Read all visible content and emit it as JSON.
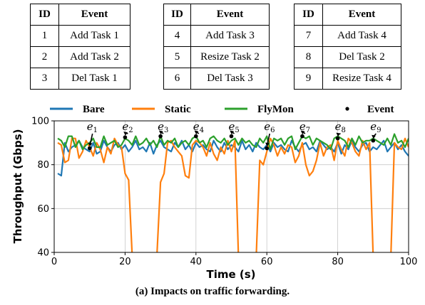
{
  "tables": [
    {
      "header": {
        "id": "ID",
        "event": "Event"
      },
      "rows": [
        {
          "id": "1",
          "event": "Add Task 1"
        },
        {
          "id": "2",
          "event": "Add Task 2"
        },
        {
          "id": "3",
          "event": "Del Task 1"
        }
      ]
    },
    {
      "header": {
        "id": "ID",
        "event": "Event"
      },
      "rows": [
        {
          "id": "4",
          "event": "Add Task 3"
        },
        {
          "id": "5",
          "event": "Resize Task 2"
        },
        {
          "id": "6",
          "event": "Del Task 3"
        }
      ]
    },
    {
      "header": {
        "id": "ID",
        "event": "Event"
      },
      "rows": [
        {
          "id": "7",
          "event": "Add Task 4"
        },
        {
          "id": "8",
          "event": "Del Task 2"
        },
        {
          "id": "9",
          "event": "Resize Task 4"
        }
      ]
    }
  ],
  "caption": "(a) Impacts on traffic forwarding.",
  "chart_data": {
    "type": "line",
    "xlabel": "Time (s)",
    "ylabel": "Throughput (Gbps)",
    "xlim": [
      0,
      100
    ],
    "ylim": [
      40,
      100
    ],
    "xticks": [
      0,
      20,
      40,
      60,
      80,
      100
    ],
    "yticks": [
      40,
      60,
      80,
      100
    ],
    "grid": true,
    "legend_position": "top",
    "x": [
      1,
      2,
      3,
      4,
      5,
      6,
      7,
      8,
      9,
      10,
      11,
      12,
      13,
      14,
      15,
      16,
      17,
      18,
      19,
      20,
      21,
      22,
      23,
      24,
      25,
      26,
      27,
      28,
      29,
      30,
      31,
      32,
      33,
      34,
      35,
      36,
      37,
      38,
      39,
      40,
      41,
      42,
      43,
      44,
      45,
      46,
      47,
      48,
      49,
      50,
      51,
      52,
      53,
      54,
      55,
      56,
      57,
      58,
      59,
      60,
      61,
      62,
      63,
      64,
      65,
      66,
      67,
      68,
      69,
      70,
      71,
      72,
      73,
      74,
      75,
      76,
      77,
      78,
      79,
      80,
      81,
      82,
      83,
      84,
      85,
      86,
      87,
      88,
      89,
      90,
      91,
      92,
      93,
      94,
      95,
      96,
      97,
      98,
      99,
      100
    ],
    "series": [
      {
        "name": "Bare",
        "color": "#1f77b4",
        "values": [
          76,
          75,
          90,
          86,
          88,
          89,
          91,
          88,
          87,
          86,
          90,
          85,
          86,
          91,
          88,
          86,
          89,
          90,
          87,
          89,
          86,
          88,
          91,
          87,
          88,
          86,
          90,
          85,
          89,
          91,
          88,
          87,
          86,
          90,
          88,
          91,
          87,
          89,
          86,
          90,
          88,
          89,
          87,
          86,
          91,
          88,
          86,
          90,
          87,
          89,
          88,
          86,
          91,
          87,
          89,
          86,
          90,
          88,
          87,
          89,
          86,
          90,
          88,
          89,
          87,
          86,
          91,
          88,
          86,
          89,
          90,
          87,
          88,
          86,
          91,
          89,
          87,
          88,
          86,
          90,
          85,
          89,
          87,
          91,
          88,
          86,
          89,
          90,
          86,
          88,
          87,
          89,
          91,
          86,
          88,
          90,
          87,
          89,
          86,
          84
        ]
      },
      {
        "name": "Static",
        "color": "#ff7f0e",
        "values": [
          90,
          89,
          81,
          82,
          92,
          92,
          83,
          86,
          91,
          88,
          84,
          90,
          87,
          81,
          88,
          85,
          92,
          89,
          88,
          76,
          73,
          39,
          38,
          38,
          38,
          38,
          38,
          38,
          39,
          72,
          76,
          90,
          91,
          88,
          86,
          84,
          75,
          74,
          89,
          91,
          90,
          88,
          84,
          90,
          85,
          82,
          88,
          85,
          91,
          86,
          91,
          38,
          38,
          38,
          38,
          38,
          38,
          82,
          80,
          86,
          92,
          89,
          84,
          88,
          85,
          89,
          88,
          81,
          84,
          90,
          80,
          75,
          77,
          82,
          90,
          84,
          88,
          89,
          82,
          91,
          87,
          84,
          92,
          90,
          86,
          84,
          91,
          87,
          90,
          38,
          38,
          38,
          38,
          38,
          38,
          90,
          88,
          87,
          92,
          88
        ]
      },
      {
        "name": "FlyMon",
        "color": "#2ca02c",
        "values": [
          92,
          91,
          88,
          93,
          93,
          88,
          91,
          87,
          89,
          90,
          92,
          88,
          88,
          93,
          89,
          90,
          91,
          88,
          89,
          92,
          91,
          89,
          93,
          89,
          90,
          92,
          89,
          91,
          88,
          93,
          89,
          91,
          90,
          92,
          88,
          90,
          91,
          89,
          92,
          93,
          90,
          91,
          88,
          92,
          93,
          91,
          90,
          92,
          89,
          91,
          92,
          89,
          92,
          90,
          91,
          89,
          88,
          92,
          90,
          93,
          87,
          92,
          91,
          92,
          89,
          92,
          93,
          87,
          90,
          93,
          92,
          93,
          89,
          92,
          91,
          90,
          89,
          87,
          92,
          93,
          92,
          91,
          88,
          92,
          89,
          93,
          90,
          91,
          91,
          92,
          91,
          90,
          89,
          92,
          89,
          94,
          90,
          91,
          88,
          92
        ]
      }
    ],
    "events": [
      {
        "label": "e",
        "sub": "1",
        "x": 10,
        "y": 87.5
      },
      {
        "label": "e",
        "sub": "2",
        "x": 20,
        "y": 92.5
      },
      {
        "label": "e",
        "sub": "3",
        "x": 30,
        "y": 93
      },
      {
        "label": "e",
        "sub": "4",
        "x": 40,
        "y": 93
      },
      {
        "label": "e",
        "sub": "5",
        "x": 50,
        "y": 93
      },
      {
        "label": "e",
        "sub": "6",
        "x": 60,
        "y": 87.5
      },
      {
        "label": "e",
        "sub": "7",
        "x": 70,
        "y": 93
      },
      {
        "label": "e",
        "sub": "8",
        "x": 80,
        "y": 92
      },
      {
        "label": "e",
        "sub": "9",
        "x": 90,
        "y": 91
      }
    ],
    "legend": [
      {
        "label": "Bare",
        "kind": "line",
        "color": "#1f77b4"
      },
      {
        "label": "Static",
        "kind": "line",
        "color": "#ff7f0e"
      },
      {
        "label": "FlyMon",
        "kind": "line",
        "color": "#2ca02c"
      },
      {
        "label": "Event",
        "kind": "marker",
        "color": "#000000"
      }
    ]
  }
}
